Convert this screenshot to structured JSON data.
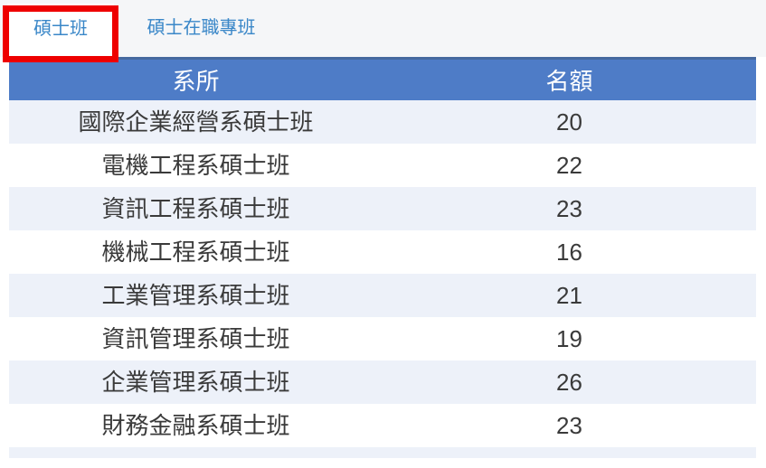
{
  "tabs": [
    {
      "label": "碩士班",
      "active": true
    },
    {
      "label": "碩士在職專班",
      "active": false
    }
  ],
  "annotation": {
    "type": "highlight-box",
    "color": "#ee0000",
    "target": "碩士班"
  },
  "table": {
    "columns": [
      "系所",
      "名額"
    ],
    "rows": [
      {
        "dept": "國際企業經營系碩士班",
        "quota": "20"
      },
      {
        "dept": "電機工程系碩士班",
        "quota": "22"
      },
      {
        "dept": "資訊工程系碩士班",
        "quota": "23"
      },
      {
        "dept": "機械工程系碩士班",
        "quota": "16"
      },
      {
        "dept": "工業管理系碩士班",
        "quota": "21"
      },
      {
        "dept": "資訊管理系碩士班",
        "quota": "19"
      },
      {
        "dept": "企業管理系碩士班",
        "quota": "26"
      },
      {
        "dept": "財務金融系碩士班",
        "quota": "23"
      }
    ]
  },
  "colors": {
    "header_bg": "#4e7cc7",
    "header_border_top": "#46699f",
    "row_alt_bg": "#edf1f9",
    "row_bg": "#ffffff",
    "tab_bar_bg": "#f5f6f8",
    "tab_text": "#3a87c8",
    "annotation_red": "#ee0000",
    "cell_text": "#3a3a3a"
  }
}
